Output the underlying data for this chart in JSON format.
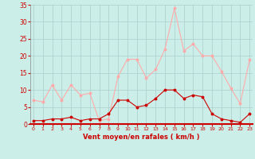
{
  "x": [
    0,
    1,
    2,
    3,
    4,
    5,
    6,
    7,
    8,
    9,
    10,
    11,
    12,
    13,
    14,
    15,
    16,
    17,
    18,
    19,
    20,
    21,
    22,
    23
  ],
  "wind_avg": [
    1,
    1,
    1.5,
    1.5,
    2,
    1,
    1.5,
    1.5,
    3,
    7,
    7,
    5,
    5.5,
    7.5,
    10,
    10,
    7.5,
    8.5,
    8,
    3,
    1.5,
    1,
    0.5,
    3
  ],
  "wind_gust": [
    7,
    6.5,
    11.5,
    7,
    11.5,
    8.5,
    9,
    1,
    1.5,
    14,
    19,
    19,
    13.5,
    16,
    22,
    34,
    21.5,
    23.5,
    20,
    20,
    15.5,
    10.5,
    6,
    19
  ],
  "color_avg": "#cc0000",
  "color_gust": "#ffaaaa",
  "bg_color": "#cceee8",
  "grid_color": "#aacccc",
  "xlabel": "Vent moyen/en rafales ( km/h )",
  "xlabel_color": "#cc0000",
  "tick_color": "#cc0000",
  "ylim": [
    0,
    35
  ],
  "yticks": [
    0,
    5,
    10,
    15,
    20,
    25,
    30,
    35
  ],
  "xticks": [
    0,
    1,
    2,
    3,
    4,
    5,
    6,
    7,
    8,
    9,
    10,
    11,
    12,
    13,
    14,
    15,
    16,
    17,
    18,
    19,
    20,
    21,
    22,
    23
  ],
  "spine_bottom_color": "#cc0000",
  "spine_left_color": "#888888"
}
